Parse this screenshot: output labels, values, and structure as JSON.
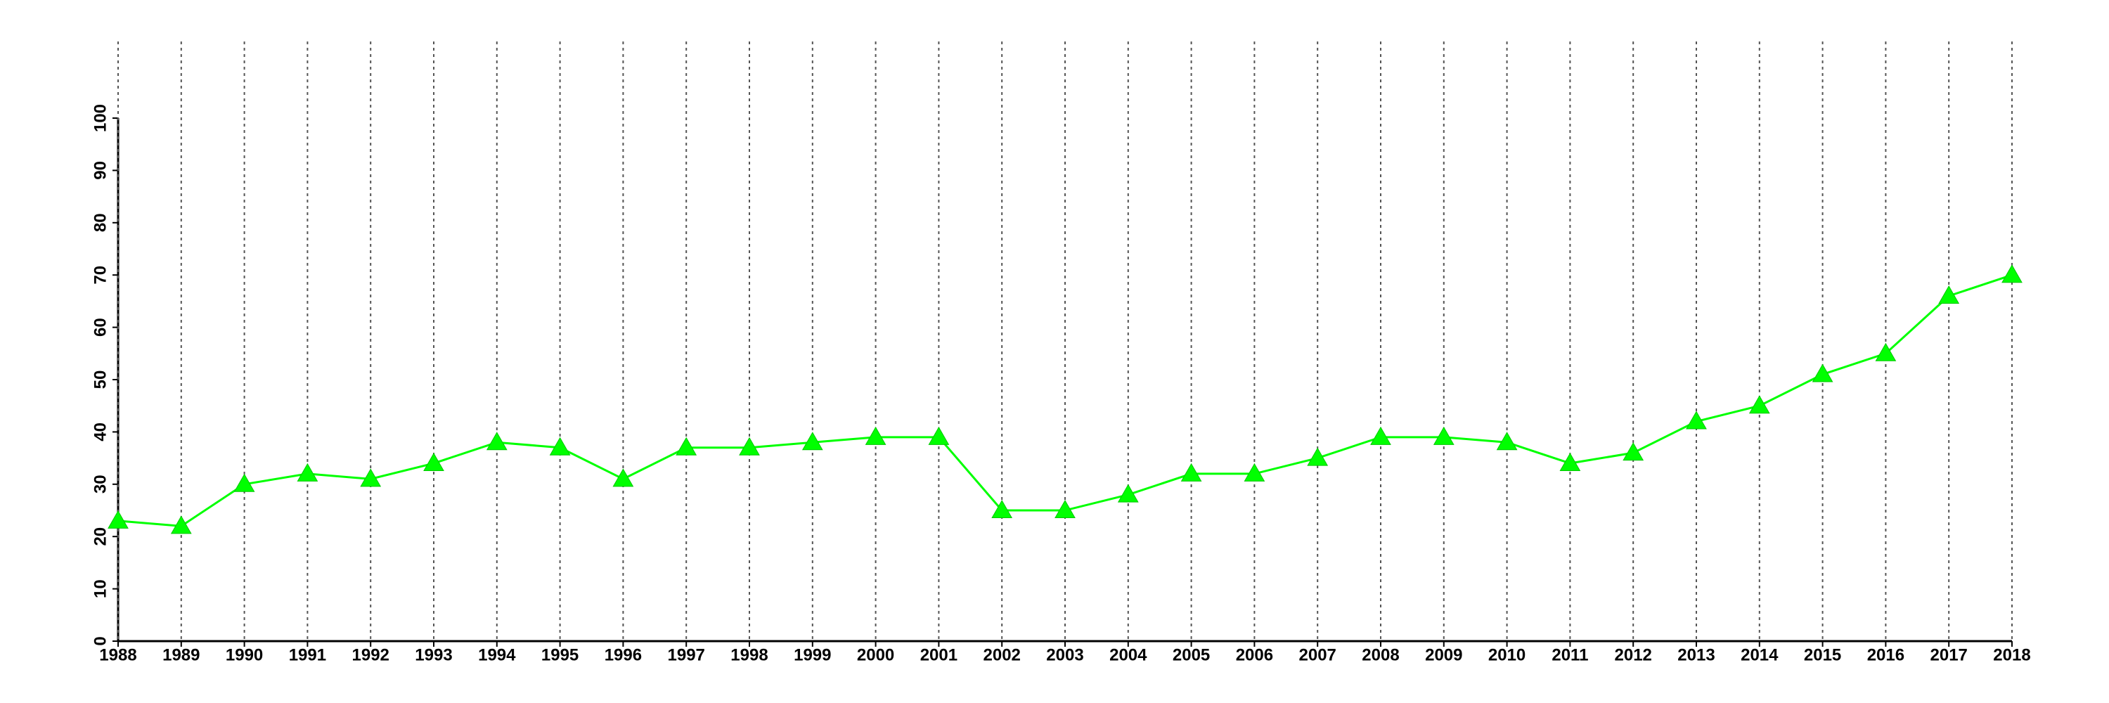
{
  "chart_data": {
    "type": "line",
    "x": [
      1988,
      1989,
      1990,
      1991,
      1992,
      1993,
      1994,
      1995,
      1996,
      1997,
      1998,
      1999,
      2000,
      2001,
      2002,
      2003,
      2004,
      2005,
      2006,
      2007,
      2008,
      2009,
      2010,
      2011,
      2012,
      2013,
      2014,
      2015,
      2016,
      2017,
      2018
    ],
    "values": [
      23,
      22,
      30,
      32,
      31,
      34,
      38,
      37,
      31,
      37,
      37,
      38,
      39,
      39,
      25,
      25,
      28,
      32,
      32,
      35,
      39,
      39,
      38,
      34,
      36,
      42,
      45,
      51,
      55,
      66,
      70
    ],
    "color": "#00ff00",
    "xlim": [
      1988,
      2018
    ],
    "xticks": [
      1988,
      1989,
      1990,
      1991,
      1992,
      1993,
      1994,
      1995,
      1996,
      1997,
      1998,
      1999,
      2000,
      2001,
      2002,
      2003,
      2004,
      2005,
      2006,
      2007,
      2008,
      2009,
      2010,
      2011,
      2012,
      2013,
      2014,
      2015,
      2016,
      2017,
      2018
    ],
    "ylim": [
      0,
      100
    ],
    "yticks": [
      0,
      10,
      20,
      30,
      40,
      50,
      60,
      70,
      80,
      90,
      100
    ],
    "marker": "triangle",
    "grid": "x"
  }
}
